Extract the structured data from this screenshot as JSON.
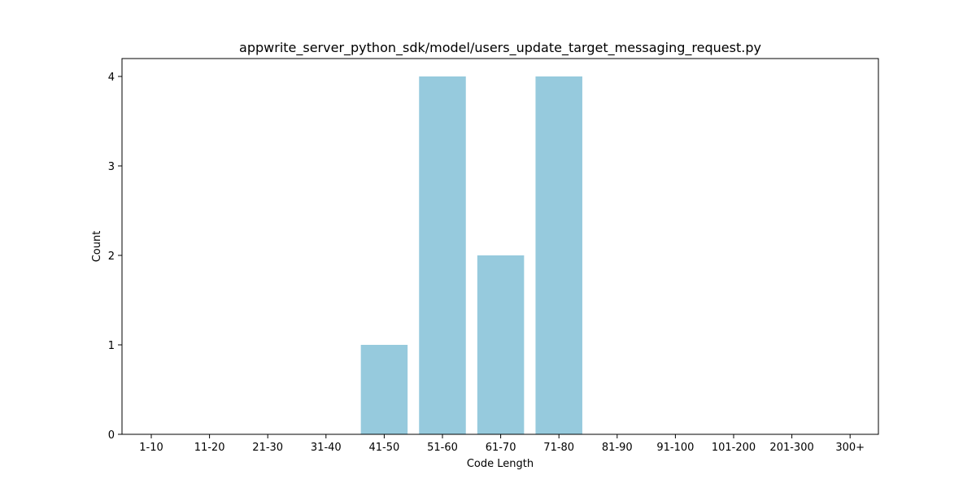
{
  "chart_data": {
    "type": "bar",
    "title": "appwrite_server_python_sdk/model/users_update_target_messaging_request.py",
    "xlabel": "Code Length",
    "ylabel": "Count",
    "categories": [
      "1-10",
      "11-20",
      "21-30",
      "31-40",
      "41-50",
      "51-60",
      "61-70",
      "71-80",
      "81-90",
      "91-100",
      "101-200",
      "201-300",
      "300+"
    ],
    "values": [
      0,
      0,
      0,
      0,
      1,
      4,
      2,
      4,
      0,
      0,
      0,
      0,
      0
    ],
    "ylim": [
      0,
      4.2
    ],
    "yticks": [
      0,
      1,
      2,
      3,
      4
    ],
    "bar_color": "#96cadd",
    "grid": false,
    "legend": "none"
  }
}
